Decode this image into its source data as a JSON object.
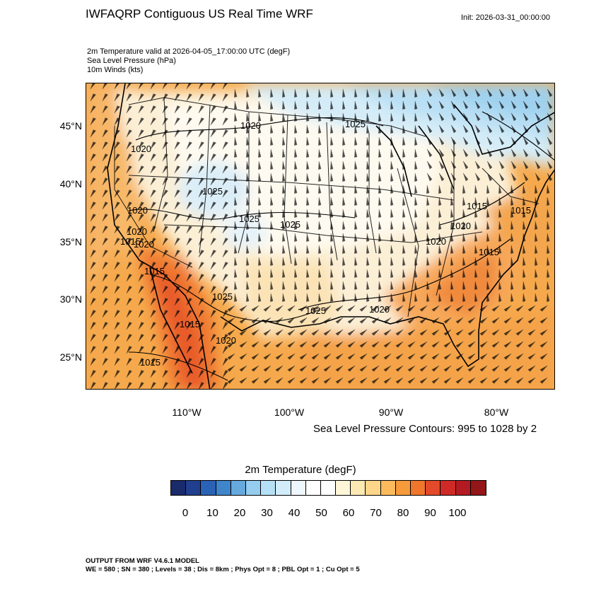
{
  "title": "IWFAQRP Contiguous US Real Time WRF",
  "init_time": "Init: 2026-03-31_00:00:00",
  "fields": [
    "2m Temperature valid at 2026-04-05_17:00:00 UTC   (degF)",
    "Sea Level Pressure   (hPa)",
    "10m Winds   (kts)"
  ],
  "latitude_labels": [
    "45°N",
    "40°N",
    "35°N",
    "30°N",
    "25°N"
  ],
  "longitude_labels": [
    "110°W",
    "100°W",
    "90°W",
    "80°W"
  ],
  "pressure_labels": [
    "1020",
    "1025",
    "1020",
    "1025",
    "1020",
    "1020",
    "1025",
    "1025",
    "1015",
    "1020",
    "1015",
    "1015",
    "1020",
    "1020",
    "1025",
    "1020",
    "1025",
    "1015",
    "1020",
    "1015",
    "1015",
    "1015"
  ],
  "contour_note": "Sea Level Pressure Contours: 995 to 1028 by 2",
  "colorbar": {
    "title": "2m Temperature  (degF)",
    "tick_labels": [
      "0",
      "10",
      "20",
      "30",
      "40",
      "50",
      "60",
      "70",
      "80",
      "90",
      "100"
    ],
    "colors": [
      "#1b2a6b",
      "#203f8f",
      "#2a62b5",
      "#3f85cc",
      "#66a9dd",
      "#94cdef",
      "#b6e0f6",
      "#d2ecf9",
      "#eef7fc",
      "#ffffff",
      "#ffffff",
      "#fff6d8",
      "#fde9b4",
      "#fdd689",
      "#fbbb5c",
      "#f79a3a",
      "#f0762c",
      "#e24a2a",
      "#cf2a26",
      "#b41a22",
      "#941618"
    ]
  },
  "footer": {
    "model": "OUTPUT FROM WRF V4.6.1 MODEL",
    "config": "WE = 580 ; SN = 380 ; Levels = 38 ; Dis = 8km ; Phys Opt = 8 ; PBL Opt = 1 ; Cu Opt = 5"
  }
}
